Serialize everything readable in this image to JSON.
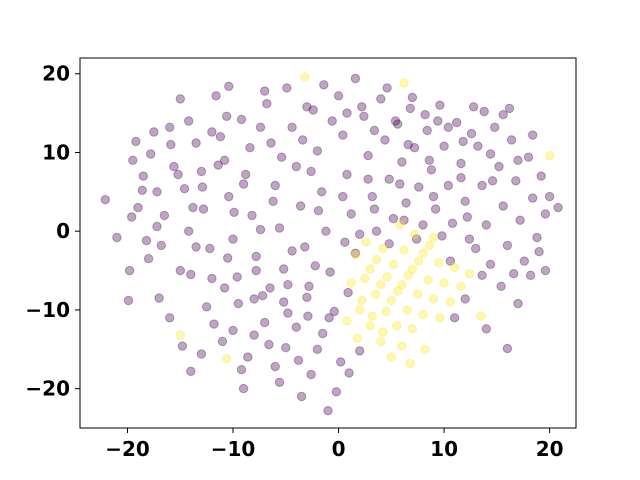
{
  "chart_data": {
    "type": "scatter",
    "title": "",
    "xlabel": "",
    "ylabel": "",
    "xlim": [
      -24.5,
      22.5
    ],
    "ylim": [
      -25,
      22
    ],
    "grid": false,
    "x_ticks": [
      -20,
      -10,
      0,
      10,
      20
    ],
    "y_ticks": [
      -20,
      -10,
      0,
      10,
      20
    ],
    "x_tick_labels": [
      "−20",
      "−10",
      "0",
      "10",
      "20"
    ],
    "y_tick_labels": [
      "−20",
      "−10",
      "0",
      "10",
      "20"
    ],
    "marker_alpha": 0.35,
    "series": [
      {
        "color": "#440154",
        "points": [
          [
            -22.1,
            4.0
          ],
          [
            -21.0,
            -0.8
          ],
          [
            -19.8,
            -5.0
          ],
          [
            -19.9,
            -8.8
          ],
          [
            -19.2,
            11.4
          ],
          [
            -19.5,
            9.0
          ],
          [
            -19.0,
            3.0
          ],
          [
            -18.5,
            7.0
          ],
          [
            -18.2,
            -1.2
          ],
          [
            -17.5,
            12.6
          ],
          [
            -17.2,
            5.0
          ],
          [
            -16.8,
            -1.8
          ],
          [
            -16.0,
            13.2
          ],
          [
            -15.6,
            8.2
          ],
          [
            -15.0,
            16.8
          ],
          [
            -14.6,
            5.4
          ],
          [
            -14.2,
            0.0
          ],
          [
            -14.0,
            -5.5
          ],
          [
            -13.5,
            11.2
          ],
          [
            -13.0,
            7.6
          ],
          [
            -12.8,
            2.8
          ],
          [
            -12.2,
            -2.2
          ],
          [
            -11.6,
            17.2
          ],
          [
            -11.2,
            12.0
          ],
          [
            -10.8,
            9.0
          ],
          [
            -10.4,
            4.4
          ],
          [
            -10.0,
            -1.0
          ],
          [
            -9.6,
            -5.8
          ],
          [
            -9.2,
            14.2
          ],
          [
            -8.8,
            7.2
          ],
          [
            -8.2,
            2.0
          ],
          [
            -7.8,
            -3.2
          ],
          [
            -7.2,
            -8.2
          ],
          [
            -6.8,
            16.2
          ],
          [
            -6.4,
            11.2
          ],
          [
            -6.0,
            5.8
          ],
          [
            -5.6,
            0.4
          ],
          [
            -5.2,
            -4.8
          ],
          [
            -4.8,
            -10.4
          ],
          [
            -4.4,
            13.2
          ],
          [
            -4.0,
            8.2
          ],
          [
            -3.6,
            3.2
          ],
          [
            -3.2,
            -2.0
          ],
          [
            -2.8,
            -7.0
          ],
          [
            -2.4,
            15.4
          ],
          [
            -2.0,
            10.2
          ],
          [
            -1.6,
            5.0
          ],
          [
            -1.2,
            0.0
          ],
          [
            -0.8,
            -5.2
          ],
          [
            -0.4,
            -10.2
          ],
          [
            0.0,
            17.2
          ],
          [
            0.4,
            12.2
          ],
          [
            0.8,
            7.2
          ],
          [
            1.2,
            2.2
          ],
          [
            1.6,
            -2.8
          ],
          [
            2.0,
            -15.2
          ],
          [
            2.4,
            14.6
          ],
          [
            2.8,
            9.6
          ],
          [
            3.2,
            4.4
          ],
          [
            3.6,
            0.0
          ],
          [
            4.0,
            16.8
          ],
          [
            4.4,
            11.6
          ],
          [
            4.8,
            6.6
          ],
          [
            5.2,
            1.6
          ],
          [
            5.6,
            13.6
          ],
          [
            6.0,
            8.8
          ],
          [
            6.4,
            3.6
          ],
          [
            6.8,
            15.6
          ],
          [
            7.2,
            10.6
          ],
          [
            7.6,
            5.6
          ],
          [
            8.0,
            0.8
          ],
          [
            8.4,
            12.8
          ],
          [
            8.8,
            7.8
          ],
          [
            9.2,
            2.8
          ],
          [
            9.6,
            16.0
          ],
          [
            10.0,
            10.8
          ],
          [
            10.4,
            5.8
          ],
          [
            10.8,
            1.0
          ],
          [
            11.2,
            13.8
          ],
          [
            11.6,
            8.6
          ],
          [
            12.0,
            3.8
          ],
          [
            12.4,
            -1.0
          ],
          [
            12.8,
            15.8
          ],
          [
            13.2,
            10.8
          ],
          [
            13.6,
            5.8
          ],
          [
            14.0,
            0.8
          ],
          [
            14.4,
            -4.2
          ],
          [
            14.8,
            13.2
          ],
          [
            15.2,
            8.2
          ],
          [
            15.6,
            3.2
          ],
          [
            16.0,
            -1.8
          ],
          [
            16.4,
            11.6
          ],
          [
            16.8,
            6.4
          ],
          [
            17.2,
            1.4
          ],
          [
            17.6,
            -3.8
          ],
          [
            18.0,
            9.4
          ],
          [
            18.4,
            4.2
          ],
          [
            18.8,
            -0.8
          ],
          [
            19.2,
            7.0
          ],
          [
            19.6,
            2.2
          ],
          [
            20.0,
            4.4
          ],
          [
            19.6,
            -5.0
          ],
          [
            17.0,
            -9.2
          ],
          [
            16.0,
            -14.9
          ],
          [
            14.0,
            -12.4
          ],
          [
            12.0,
            -8.6
          ],
          [
            11.0,
            -11.0
          ],
          [
            -3.5,
            -21.0
          ],
          [
            -1.0,
            -22.8
          ],
          [
            -14.0,
            -17.8
          ],
          [
            -9.0,
            -20.0
          ],
          [
            -6.0,
            -17.2
          ],
          [
            -11.0,
            -14.0
          ],
          [
            -8.0,
            -13.2
          ],
          [
            -5.0,
            -14.8
          ],
          [
            -2.0,
            -15.0
          ],
          [
            1.0,
            -18.0
          ],
          [
            -12.5,
            -9.6
          ],
          [
            -16.0,
            -11.0
          ],
          [
            -17.0,
            -8.5
          ],
          [
            -15.0,
            -5.0
          ],
          [
            -12.0,
            -6.0
          ],
          [
            -9.5,
            -9.2
          ],
          [
            -7.0,
            -11.6
          ],
          [
            -4.0,
            -12.2
          ],
          [
            -1.5,
            -13.0
          ],
          [
            -6.5,
            -7.2
          ],
          [
            -3.0,
            -8.4
          ],
          [
            -10.5,
            -3.4
          ],
          [
            -13.5,
            -2.0
          ],
          [
            -16.5,
            2.0
          ],
          [
            -18.0,
            -3.5
          ],
          [
            -11.8,
            -11.8
          ],
          [
            -14.8,
            -14.6
          ],
          [
            -8.6,
            -16.0
          ],
          [
            -5.6,
            -19.2
          ],
          [
            -2.6,
            -18.2
          ],
          [
            0.2,
            -16.6
          ],
          [
            -0.9,
            -11.0
          ],
          [
            -4.4,
            -2.5
          ],
          [
            -1.9,
            2.6
          ],
          [
            0.9,
            -7.8
          ],
          [
            -7.4,
            0.2
          ],
          [
            -9.9,
            2.4
          ],
          [
            -12.9,
            5.6
          ],
          [
            -15.9,
            11.0
          ],
          [
            -18.6,
            5.2
          ],
          [
            -17.8,
            9.8
          ],
          [
            -14.2,
            14.0
          ],
          [
            -10.6,
            14.6
          ],
          [
            -7.4,
            13.2
          ],
          [
            -4.9,
            18.2
          ],
          [
            -1.4,
            18.6
          ],
          [
            1.6,
            19.4
          ],
          [
            3.4,
            12.8
          ],
          [
            6.6,
            11.0
          ],
          [
            9.4,
            14.0
          ],
          [
            12.6,
            12.4
          ],
          [
            15.6,
            14.8
          ],
          [
            18.4,
            12.2
          ],
          [
            20.8,
            3.0
          ],
          [
            19.0,
            -2.6
          ],
          [
            15.4,
            -7.0
          ],
          [
            13.0,
            -2.2
          ],
          [
            10.6,
            -3.8
          ],
          [
            11.6,
            6.8
          ],
          [
            8.6,
            9.0
          ],
          [
            5.8,
            6.0
          ],
          [
            2.8,
            6.6
          ],
          [
            0.4,
            4.4
          ],
          [
            -2.6,
            7.6
          ],
          [
            -5.4,
            9.4
          ],
          [
            -8.4,
            10.6
          ],
          [
            -11.4,
            8.4
          ],
          [
            -13.8,
            3.0
          ],
          [
            -10.8,
            -7.2
          ],
          [
            -7.8,
            -5.0
          ],
          [
            -4.8,
            -6.8
          ],
          [
            -2.2,
            -4.4
          ],
          [
            0.6,
            -1.4
          ],
          [
            3.4,
            2.8
          ],
          [
            6.2,
            1.4
          ],
          [
            9.0,
            4.4
          ],
          [
            12.2,
            1.8
          ],
          [
            14.6,
            6.4
          ],
          [
            17.0,
            9.0
          ],
          [
            14.4,
            9.8
          ],
          [
            11.8,
            11.4
          ],
          [
            8.2,
            14.8
          ],
          [
            5.4,
            14.0
          ],
          [
            2.2,
            15.8
          ],
          [
            -0.6,
            14.0
          ],
          [
            -3.4,
            11.6
          ],
          [
            -6.2,
            3.8
          ],
          [
            -9.0,
            6.0
          ],
          [
            -12.0,
            12.6
          ],
          [
            -15.2,
            7.2
          ],
          [
            -17.2,
            0.6
          ],
          [
            -19.6,
            1.8
          ],
          [
            -13.0,
            -15.6
          ],
          [
            -9.2,
            -17.6
          ],
          [
            -3.8,
            -16.4
          ],
          [
            -0.2,
            -20.4
          ],
          [
            -6.6,
            -14.4
          ],
          [
            -10.0,
            -12.6
          ],
          [
            -2.9,
            -10.8
          ],
          [
            -5.2,
            -9.0
          ],
          [
            -8.0,
            -8.6
          ],
          [
            7.4,
            -1.0
          ],
          [
            9.8,
            -0.6
          ],
          [
            4.8,
            -1.6
          ],
          [
            2.0,
            -0.4
          ],
          [
            13.6,
            -5.6
          ],
          [
            16.6,
            -5.4
          ],
          [
            18.2,
            -5.6
          ],
          [
            10.4,
            13.2
          ],
          [
            13.8,
            15.2
          ],
          [
            16.2,
            15.6
          ],
          [
            7.0,
            17.0
          ],
          [
            4.6,
            18.2
          ],
          [
            0.8,
            15.0
          ],
          [
            -3.0,
            15.8
          ],
          [
            -7.0,
            17.8
          ],
          [
            -10.4,
            18.4
          ]
        ]
      },
      {
        "color": "#fde725",
        "points": [
          [
            -15.0,
            -13.2
          ],
          [
            -10.6,
            -16.2
          ],
          [
            -3.2,
            19.6
          ],
          [
            6.2,
            18.8
          ],
          [
            20.0,
            9.6
          ],
          [
            13.5,
            -10.8
          ],
          [
            2.0,
            -10.0
          ],
          [
            3.0,
            -12.0
          ],
          [
            4.0,
            -14.0
          ],
          [
            5.0,
            -16.0
          ],
          [
            6.0,
            -14.6
          ],
          [
            7.0,
            -12.4
          ],
          [
            8.0,
            -10.6
          ],
          [
            9.0,
            -8.6
          ],
          [
            10.0,
            -6.6
          ],
          [
            11.0,
            -4.6
          ],
          [
            2.5,
            -6.0
          ],
          [
            3.5,
            -8.0
          ],
          [
            4.5,
            -10.2
          ],
          [
            5.5,
            -12.0
          ],
          [
            6.5,
            -10.0
          ],
          [
            7.5,
            -8.0
          ],
          [
            8.5,
            -6.2
          ],
          [
            9.5,
            -4.0
          ],
          [
            1.6,
            -3.0
          ],
          [
            2.6,
            -1.4
          ],
          [
            3.6,
            -3.6
          ],
          [
            4.6,
            -5.8
          ],
          [
            5.6,
            -7.6
          ],
          [
            6.6,
            -5.6
          ],
          [
            7.6,
            -3.8
          ],
          [
            8.6,
            -1.8
          ],
          [
            3.0,
            -4.8
          ],
          [
            4.0,
            -6.8
          ],
          [
            5.0,
            -8.8
          ],
          [
            6.0,
            -6.8
          ],
          [
            7.0,
            -4.8
          ],
          [
            8.0,
            -2.8
          ],
          [
            9.0,
            -0.8
          ],
          [
            4.2,
            -2.2
          ],
          [
            5.2,
            -4.2
          ],
          [
            6.2,
            -2.4
          ],
          [
            7.2,
            -0.4
          ],
          [
            5.8,
            0.8
          ],
          [
            2.2,
            -8.8
          ],
          [
            3.2,
            -10.8
          ],
          [
            4.2,
            -12.8
          ],
          [
            1.2,
            -6.6
          ],
          [
            0.8,
            -11.4
          ],
          [
            1.8,
            -13.6
          ],
          [
            9.6,
            -11.0
          ],
          [
            10.6,
            -9.0
          ],
          [
            11.6,
            -7.0
          ],
          [
            12.4,
            -5.4
          ],
          [
            6.8,
            -16.8
          ],
          [
            8.2,
            -15.0
          ]
        ]
      }
    ]
  }
}
